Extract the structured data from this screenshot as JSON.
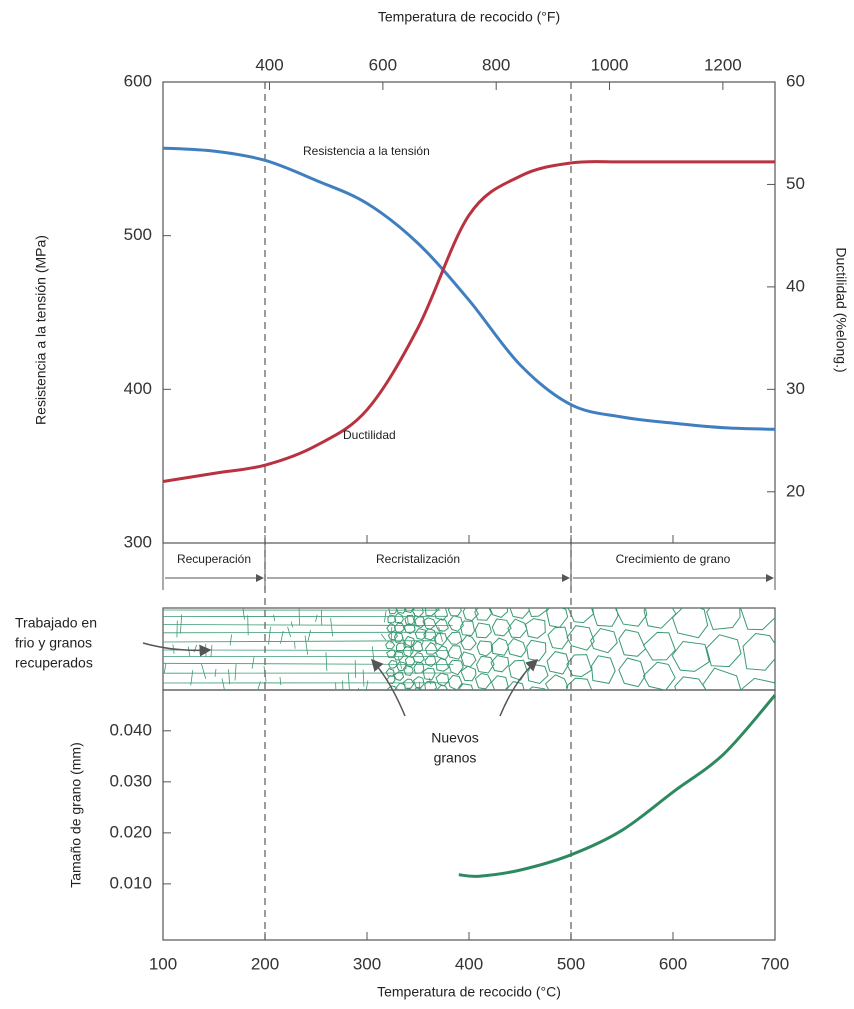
{
  "chart_data": [
    {
      "type": "line",
      "x2label": "Temperatura de recocido (°F)",
      "ylabel": "Resistencia a la tensión (MPa)",
      "y2label": "Ductilidad (%elong.)",
      "xlim": [
        100,
        700
      ],
      "x2lim": [
        212,
        1292
      ],
      "x2ticks": [
        400,
        600,
        800,
        1000,
        1200
      ],
      "ylim": [
        300,
        600
      ],
      "yticks": [
        300,
        400,
        500,
        600
      ],
      "y2lim": [
        15,
        60
      ],
      "y2ticks": [
        20,
        30,
        40,
        50,
        60
      ],
      "vlines": [
        200,
        500
      ],
      "regions": [
        {
          "label": "Recuperación",
          "from": 100,
          "to": 200
        },
        {
          "label": "Recristalización",
          "from": 200,
          "to": 500
        },
        {
          "label": "Crecimiento de grano",
          "from": 500,
          "to": 700
        }
      ],
      "x": [
        100,
        150,
        200,
        250,
        300,
        350,
        400,
        450,
        500,
        550,
        600,
        650,
        700
      ],
      "series": [
        {
          "name": "Resistencia a la tensión",
          "color": "#3f7fc0",
          "values": [
            557,
            555,
            549,
            536,
            521,
            495,
            458,
            416,
            390,
            382,
            378,
            375,
            374
          ]
        },
        {
          "name": "Ductilidad",
          "color": "#b8323f",
          "axis": "y2",
          "values": [
            21,
            21.8,
            22.6,
            24.5,
            28,
            36,
            47,
            50.8,
            52.1,
            52.2,
            52.2,
            52.2,
            52.2
          ]
        }
      ]
    },
    {
      "type": "line",
      "xlabel": "Temperatura de recocido (°C)",
      "ylabel": "Tamaño de grano (mm)",
      "xlim": [
        100,
        700
      ],
      "xticks": [
        100,
        200,
        300,
        400,
        500,
        600,
        700
      ],
      "ylim": [
        -0.001,
        0.048
      ],
      "yticks": [
        {
          "value": 0.01,
          "label": "0.010"
        },
        {
          "value": 0.02,
          "label": "0.020"
        },
        {
          "value": 0.03,
          "label": "0.030"
        },
        {
          "value": 0.04,
          "label": "0.040"
        }
      ],
      "annotations": [
        [
          "Trabajado en",
          "frio y granos",
          "recuperados"
        ],
        [
          "Nuevos",
          "granos"
        ]
      ],
      "x": [
        390,
        410,
        450,
        500,
        550,
        600,
        650,
        700
      ],
      "series": [
        {
          "color": "#2e8a5e",
          "values": [
            0.0118,
            0.0115,
            0.0127,
            0.0157,
            0.0205,
            0.028,
            0.0355,
            0.047
          ]
        }
      ]
    }
  ]
}
